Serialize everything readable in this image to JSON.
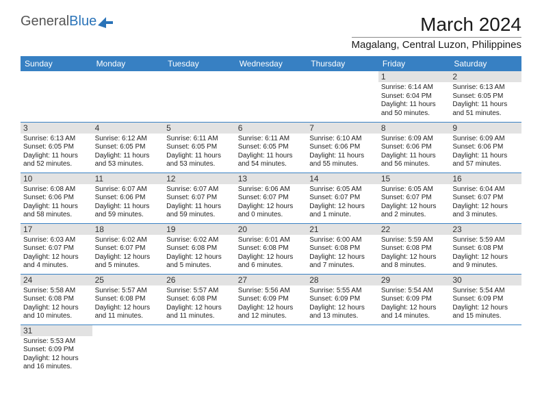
{
  "logo": {
    "text1": "General",
    "text2": "Blue"
  },
  "title": "March 2024",
  "location": "Magalang, Central Luzon, Philippines",
  "colors": {
    "header_bg": "#3780c3",
    "daynum_bg": "#e2e2e2",
    "border": "#3780c3"
  },
  "dayHeaders": [
    "Sunday",
    "Monday",
    "Tuesday",
    "Wednesday",
    "Thursday",
    "Friday",
    "Saturday"
  ],
  "weeks": [
    [
      null,
      null,
      null,
      null,
      null,
      {
        "n": "1",
        "sr": "Sunrise: 6:14 AM",
        "ss": "Sunset: 6:04 PM",
        "dl": "Daylight: 11 hours and 50 minutes."
      },
      {
        "n": "2",
        "sr": "Sunrise: 6:13 AM",
        "ss": "Sunset: 6:05 PM",
        "dl": "Daylight: 11 hours and 51 minutes."
      }
    ],
    [
      {
        "n": "3",
        "sr": "Sunrise: 6:13 AM",
        "ss": "Sunset: 6:05 PM",
        "dl": "Daylight: 11 hours and 52 minutes."
      },
      {
        "n": "4",
        "sr": "Sunrise: 6:12 AM",
        "ss": "Sunset: 6:05 PM",
        "dl": "Daylight: 11 hours and 53 minutes."
      },
      {
        "n": "5",
        "sr": "Sunrise: 6:11 AM",
        "ss": "Sunset: 6:05 PM",
        "dl": "Daylight: 11 hours and 53 minutes."
      },
      {
        "n": "6",
        "sr": "Sunrise: 6:11 AM",
        "ss": "Sunset: 6:05 PM",
        "dl": "Daylight: 11 hours and 54 minutes."
      },
      {
        "n": "7",
        "sr": "Sunrise: 6:10 AM",
        "ss": "Sunset: 6:06 PM",
        "dl": "Daylight: 11 hours and 55 minutes."
      },
      {
        "n": "8",
        "sr": "Sunrise: 6:09 AM",
        "ss": "Sunset: 6:06 PM",
        "dl": "Daylight: 11 hours and 56 minutes."
      },
      {
        "n": "9",
        "sr": "Sunrise: 6:09 AM",
        "ss": "Sunset: 6:06 PM",
        "dl": "Daylight: 11 hours and 57 minutes."
      }
    ],
    [
      {
        "n": "10",
        "sr": "Sunrise: 6:08 AM",
        "ss": "Sunset: 6:06 PM",
        "dl": "Daylight: 11 hours and 58 minutes."
      },
      {
        "n": "11",
        "sr": "Sunrise: 6:07 AM",
        "ss": "Sunset: 6:06 PM",
        "dl": "Daylight: 11 hours and 59 minutes."
      },
      {
        "n": "12",
        "sr": "Sunrise: 6:07 AM",
        "ss": "Sunset: 6:07 PM",
        "dl": "Daylight: 11 hours and 59 minutes."
      },
      {
        "n": "13",
        "sr": "Sunrise: 6:06 AM",
        "ss": "Sunset: 6:07 PM",
        "dl": "Daylight: 12 hours and 0 minutes."
      },
      {
        "n": "14",
        "sr": "Sunrise: 6:05 AM",
        "ss": "Sunset: 6:07 PM",
        "dl": "Daylight: 12 hours and 1 minute."
      },
      {
        "n": "15",
        "sr": "Sunrise: 6:05 AM",
        "ss": "Sunset: 6:07 PM",
        "dl": "Daylight: 12 hours and 2 minutes."
      },
      {
        "n": "16",
        "sr": "Sunrise: 6:04 AM",
        "ss": "Sunset: 6:07 PM",
        "dl": "Daylight: 12 hours and 3 minutes."
      }
    ],
    [
      {
        "n": "17",
        "sr": "Sunrise: 6:03 AM",
        "ss": "Sunset: 6:07 PM",
        "dl": "Daylight: 12 hours and 4 minutes."
      },
      {
        "n": "18",
        "sr": "Sunrise: 6:02 AM",
        "ss": "Sunset: 6:07 PM",
        "dl": "Daylight: 12 hours and 5 minutes."
      },
      {
        "n": "19",
        "sr": "Sunrise: 6:02 AM",
        "ss": "Sunset: 6:08 PM",
        "dl": "Daylight: 12 hours and 5 minutes."
      },
      {
        "n": "20",
        "sr": "Sunrise: 6:01 AM",
        "ss": "Sunset: 6:08 PM",
        "dl": "Daylight: 12 hours and 6 minutes."
      },
      {
        "n": "21",
        "sr": "Sunrise: 6:00 AM",
        "ss": "Sunset: 6:08 PM",
        "dl": "Daylight: 12 hours and 7 minutes."
      },
      {
        "n": "22",
        "sr": "Sunrise: 5:59 AM",
        "ss": "Sunset: 6:08 PM",
        "dl": "Daylight: 12 hours and 8 minutes."
      },
      {
        "n": "23",
        "sr": "Sunrise: 5:59 AM",
        "ss": "Sunset: 6:08 PM",
        "dl": "Daylight: 12 hours and 9 minutes."
      }
    ],
    [
      {
        "n": "24",
        "sr": "Sunrise: 5:58 AM",
        "ss": "Sunset: 6:08 PM",
        "dl": "Daylight: 12 hours and 10 minutes."
      },
      {
        "n": "25",
        "sr": "Sunrise: 5:57 AM",
        "ss": "Sunset: 6:08 PM",
        "dl": "Daylight: 12 hours and 11 minutes."
      },
      {
        "n": "26",
        "sr": "Sunrise: 5:57 AM",
        "ss": "Sunset: 6:08 PM",
        "dl": "Daylight: 12 hours and 11 minutes."
      },
      {
        "n": "27",
        "sr": "Sunrise: 5:56 AM",
        "ss": "Sunset: 6:09 PM",
        "dl": "Daylight: 12 hours and 12 minutes."
      },
      {
        "n": "28",
        "sr": "Sunrise: 5:55 AM",
        "ss": "Sunset: 6:09 PM",
        "dl": "Daylight: 12 hours and 13 minutes."
      },
      {
        "n": "29",
        "sr": "Sunrise: 5:54 AM",
        "ss": "Sunset: 6:09 PM",
        "dl": "Daylight: 12 hours and 14 minutes."
      },
      {
        "n": "30",
        "sr": "Sunrise: 5:54 AM",
        "ss": "Sunset: 6:09 PM",
        "dl": "Daylight: 12 hours and 15 minutes."
      }
    ],
    [
      {
        "n": "31",
        "sr": "Sunrise: 5:53 AM",
        "ss": "Sunset: 6:09 PM",
        "dl": "Daylight: 12 hours and 16 minutes."
      },
      null,
      null,
      null,
      null,
      null,
      null
    ]
  ]
}
